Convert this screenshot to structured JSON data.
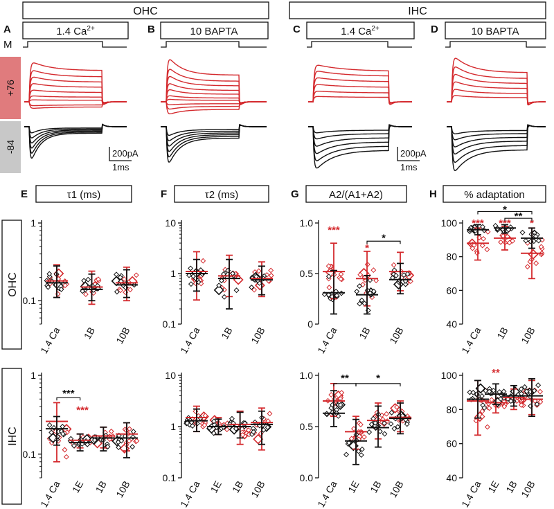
{
  "colors": {
    "red": "#d42a2e",
    "black": "#111111",
    "redband": "#e07b7d",
    "greyband": "#c8c8c8"
  },
  "headers": {
    "ohc": "OHC",
    "ihc": "IHC"
  },
  "rows": {
    "ohc": "OHC",
    "ihc": "IHC"
  },
  "traces": {
    "panels": [
      {
        "letter": "A",
        "label": "1.4 Ca",
        "sup": "2+"
      },
      {
        "letter": "B",
        "label": "10 BAPTA",
        "sup": ""
      },
      {
        "letter": "C",
        "label": "1.4 Ca",
        "sup": "2+"
      },
      {
        "letter": "D",
        "label": "10 BAPTA",
        "sup": ""
      }
    ],
    "m_label": "M",
    "pos_label": "+76",
    "neg_label": "-84",
    "scale_current": "200pA",
    "scale_time": "1ms"
  },
  "scatter": {
    "columns": [
      {
        "letter": "E",
        "title": "τ1 (ms)"
      },
      {
        "letter": "F",
        "title": "τ2 (ms)"
      },
      {
        "letter": "G",
        "title": "A2/(A1+A2)"
      },
      {
        "letter": "H",
        "title": "% adaptation"
      }
    ],
    "ohc_categories": [
      "1.4 Ca",
      "1B",
      "10B"
    ],
    "ihc_categories": [
      "1.4 Ca",
      "1E",
      "1B",
      "10B"
    ]
  },
  "chart_data": [
    {
      "type": "scatter",
      "panel": "E-OHC",
      "title": "τ1 (ms)",
      "yscale": "log",
      "ylim": [
        0.05,
        1
      ],
      "yticks": [
        {
          "v": 0.1,
          "t": "0.1"
        },
        {
          "v": 1,
          "t": "1"
        }
      ],
      "categories": [
        "1.4 Ca",
        "1B",
        "10B"
      ],
      "series": [
        {
          "name": "red",
          "mean": [
            0.18,
            0.15,
            0.17
          ],
          "sdlo": [
            0.11,
            0.09,
            0.1
          ],
          "sdhi": [
            0.29,
            0.24,
            0.27
          ]
        },
        {
          "name": "black",
          "mean": [
            0.17,
            0.14,
            0.16
          ],
          "sdlo": [
            0.11,
            0.1,
            0.11
          ],
          "sdhi": [
            0.28,
            0.22,
            0.25
          ]
        }
      ],
      "annotations": []
    },
    {
      "type": "scatter",
      "panel": "F-OHC",
      "title": "τ2 (ms)",
      "yscale": "log",
      "ylim": [
        0.1,
        10
      ],
      "yticks": [
        {
          "v": 0.1,
          "t": "0.1"
        },
        {
          "v": 1,
          "t": "1"
        },
        {
          "v": 10,
          "t": "10"
        }
      ],
      "categories": [
        "1.4 Ca",
        "1B",
        "10B"
      ],
      "series": [
        {
          "name": "red",
          "mean": [
            1.1,
            0.9,
            0.8
          ],
          "sdlo": [
            0.3,
            0.35,
            0.35
          ],
          "sdhi": [
            2.7,
            2.3,
            1.7
          ]
        },
        {
          "name": "black",
          "mean": [
            1.0,
            0.8,
            0.75
          ],
          "sdlo": [
            0.45,
            0.2,
            0.38
          ],
          "sdhi": [
            1.9,
            1.9,
            1.4
          ]
        }
      ],
      "annotations": []
    },
    {
      "type": "scatter",
      "panel": "G-OHC",
      "title": "A2/(A1+A2)",
      "yscale": "linear",
      "ylim": [
        0,
        1.0
      ],
      "yticks": [
        {
          "v": 0,
          "t": "0"
        },
        {
          "v": 0.5,
          "t": "0.5"
        },
        {
          "v": 1.0,
          "t": "1.0"
        }
      ],
      "categories": [
        "1.4 Ca",
        "1B",
        "10B"
      ],
      "series": [
        {
          "name": "red",
          "mean": [
            0.52,
            0.45,
            0.52
          ],
          "sdlo": [
            0.25,
            0.18,
            0.33
          ],
          "sdhi": [
            0.8,
            0.72,
            0.71
          ]
        },
        {
          "name": "black",
          "mean": [
            0.31,
            0.29,
            0.44
          ],
          "sdlo": [
            0.1,
            0.1,
            0.3
          ],
          "sdhi": [
            0.53,
            0.48,
            0.6
          ]
        }
      ],
      "annotations": [
        {
          "text": "***",
          "color": "red",
          "x": 0,
          "y": 0.94
        },
        {
          "text": "*",
          "color": "red",
          "x": 1,
          "y": 0.76
        },
        {
          "text": "*",
          "color": "black",
          "x": 1.5,
          "y": 0.86,
          "from": 1,
          "to": 2,
          "ybar": 0.82
        }
      ]
    },
    {
      "type": "scatter",
      "panel": "H-OHC",
      "title": "% adaptation",
      "yscale": "linear",
      "ylim": [
        40,
        100
      ],
      "yticks": [
        {
          "v": 40,
          "t": "40"
        },
        {
          "v": 60,
          "t": "60"
        },
        {
          "v": 80,
          "t": "80"
        },
        {
          "v": 100,
          "t": "100"
        }
      ],
      "categories": [
        "1.4 Ca",
        "1B",
        "10B"
      ],
      "series": [
        {
          "name": "red",
          "mean": [
            88,
            91,
            82
          ],
          "sdlo": [
            78,
            84,
            67
          ],
          "sdhi": [
            97,
            98,
            97
          ]
        },
        {
          "name": "black",
          "mean": [
            96,
            97,
            91
          ],
          "sdlo": [
            93,
            94,
            85
          ],
          "sdhi": [
            99,
            99,
            97
          ]
        }
      ],
      "annotations": [
        {
          "text": "***",
          "color": "red",
          "x": 0,
          "y": 100.5
        },
        {
          "text": "***",
          "color": "red",
          "x": 1,
          "y": 100.5
        },
        {
          "text": "*",
          "color": "red",
          "x": 2,
          "y": 100.5
        },
        {
          "text": "**",
          "color": "black",
          "x": 1.5,
          "y": 104.5,
          "from": 1,
          "to": 2,
          "ybar": 102.8
        },
        {
          "text": "*",
          "color": "black",
          "x": 1,
          "y": 108.5,
          "from": 0,
          "to": 2,
          "ybar": 106.8
        }
      ]
    },
    {
      "type": "scatter",
      "panel": "E-IHC",
      "title": "τ1 (ms)",
      "yscale": "log",
      "ylim": [
        0.05,
        1
      ],
      "yticks": [
        {
          "v": 0.1,
          "t": "0.1"
        },
        {
          "v": 1,
          "t": "1"
        }
      ],
      "categories": [
        "1.4 Ca",
        "1E",
        "1B",
        "10B"
      ],
      "series": [
        {
          "name": "red",
          "mean": [
            0.26,
            0.15,
            0.17,
            0.18
          ],
          "sdlo": [
            0.08,
            0.12,
            0.12,
            0.11
          ],
          "sdhi": [
            0.45,
            0.18,
            0.22,
            0.25
          ]
        },
        {
          "name": "black",
          "mean": [
            0.21,
            0.14,
            0.16,
            0.16
          ],
          "sdlo": [
            0.13,
            0.11,
            0.11,
            0.09
          ],
          "sdhi": [
            0.3,
            0.18,
            0.22,
            0.25
          ]
        }
      ],
      "annotations": [
        {
          "text": "***",
          "color": "black",
          "x": 0.5,
          "y": 0.6,
          "from": 0,
          "to": 1,
          "ybar": 0.52
        },
        {
          "text": "***",
          "color": "red",
          "x": 1.1,
          "y": 0.37
        }
      ]
    },
    {
      "type": "scatter",
      "panel": "F-IHC",
      "title": "τ2 (ms)",
      "yscale": "log",
      "ylim": [
        0.1,
        10
      ],
      "yticks": [
        {
          "v": 0.1,
          "t": "0.1"
        },
        {
          "v": 1,
          "t": "1"
        },
        {
          "v": 10,
          "t": "10"
        }
      ],
      "categories": [
        "1.4 Ca",
        "1E",
        "1B",
        "10B"
      ],
      "series": [
        {
          "name": "red",
          "mean": [
            1.5,
            1.0,
            1.1,
            1.2
          ],
          "sdlo": [
            0.8,
            0.7,
            0.45,
            0.35
          ],
          "sdhi": [
            2.5,
            1.5,
            2.0,
            2.3
          ]
        },
        {
          "name": "black",
          "mean": [
            1.3,
            1.0,
            1.0,
            1.1
          ],
          "sdlo": [
            0.8,
            0.7,
            0.6,
            0.45
          ],
          "sdhi": [
            2.2,
            1.4,
            1.9,
            2.0
          ]
        }
      ],
      "annotations": []
    },
    {
      "type": "scatter",
      "panel": "G-IHC",
      "title": "A2/(A1+A2)",
      "yscale": "linear",
      "ylim": [
        0,
        1.0
      ],
      "yticks": [
        {
          "v": 0,
          "t": "0.0"
        },
        {
          "v": 0.5,
          "t": "0.5"
        },
        {
          "v": 1.0,
          "t": "1.0"
        }
      ],
      "categories": [
        "1.4 Ca",
        "1E",
        "1B",
        "10B"
      ],
      "series": [
        {
          "name": "red",
          "mean": [
            0.75,
            0.45,
            0.56,
            0.59
          ],
          "sdlo": [
            0.6,
            0.28,
            0.38,
            0.45
          ],
          "sdhi": [
            0.92,
            0.6,
            0.73,
            0.75
          ]
        },
        {
          "name": "black",
          "mean": [
            0.63,
            0.36,
            0.49,
            0.58
          ],
          "sdlo": [
            0.5,
            0.13,
            0.3,
            0.43
          ],
          "sdhi": [
            0.85,
            0.57,
            0.7,
            0.73
          ]
        }
      ],
      "annotations": [
        {
          "text": "**",
          "color": "black",
          "x": 0.5,
          "y": 0.98,
          "from": 0,
          "to": 1,
          "ybar": 0.92
        },
        {
          "text": "*",
          "color": "black",
          "x": 2,
          "y": 0.98,
          "from": 1,
          "to": 3,
          "ybar": 0.92
        }
      ]
    },
    {
      "type": "scatter",
      "panel": "H-IHC",
      "title": "% adaptation",
      "yscale": "linear",
      "ylim": [
        40,
        100
      ],
      "yticks": [
        {
          "v": 40,
          "t": "40"
        },
        {
          "v": 60,
          "t": "60"
        },
        {
          "v": 80,
          "t": "80"
        },
        {
          "v": 100,
          "t": "100"
        }
      ],
      "categories": [
        "1.4 Ca",
        "1E",
        "1B",
        "10B"
      ],
      "series": [
        {
          "name": "red",
          "mean": [
            85,
            84,
            87,
            86
          ],
          "sdlo": [
            65,
            78,
            80,
            77
          ],
          "sdhi": [
            97,
            89,
            92,
            97
          ]
        },
        {
          "name": "black",
          "mean": [
            86,
            89,
            88,
            88
          ],
          "sdlo": [
            75,
            83,
            82,
            76
          ],
          "sdhi": [
            97,
            95,
            94,
            98
          ]
        }
      ],
      "annotations": [
        {
          "text": "**",
          "color": "red",
          "x": 1,
          "y": 102
        }
      ]
    }
  ]
}
